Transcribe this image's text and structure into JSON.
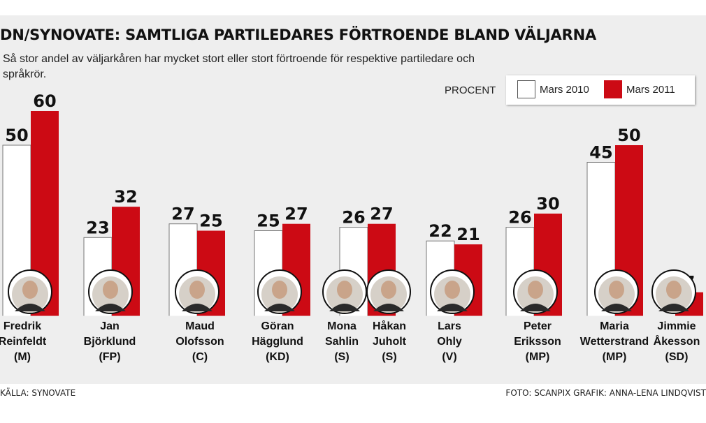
{
  "title": "DN/SYNOVATE: SAMTLIGA PARTILEDARES FÖRTROENDE BLAND VÄLJARNA",
  "subtitle": "Så stor andel av väljarkåren har mycket stort eller stort förtroende för respektive partiledare och språkrör.",
  "legend": {
    "unit_label": "PROCENT",
    "series_2010": "Mars 2010",
    "series_2011": "Mars 2011"
  },
  "colors": {
    "series_2010": "#ffffff",
    "series_2011": "#cc0a14",
    "background": "#eeeeee"
  },
  "footer": {
    "source": "KÄLLA: SYNOVATE",
    "credits": "FOTO: SCANPIX   GRAFIK: ANNA-LENA LINDQVIST"
  },
  "chart_data": {
    "type": "bar",
    "title": "DN/SYNOVATE: SAMTLIGA PARTILEDARES FÖRTROENDE BLAND VÄLJARNA",
    "ylabel": "PROCENT",
    "categories": [
      [
        "Fredrik",
        "Reinfeldt",
        "(M)"
      ],
      [
        "Jan",
        "Björklund",
        "(FP)"
      ],
      [
        "Maud",
        "Olofsson",
        "(C)"
      ],
      [
        "Göran",
        "Hägglund",
        "(KD)"
      ],
      [
        "Mona",
        "Sahlin",
        "(S)"
      ],
      [
        "Håkan",
        "Juholt",
        "(S)"
      ],
      [
        "Lars",
        "Ohly",
        "(V)"
      ],
      [
        "Peter",
        "Eriksson",
        "(MP)"
      ],
      [
        "Maria",
        "Wetterstrand",
        "(MP)"
      ],
      [
        "Jimmie",
        "Åkesson",
        "(SD)"
      ]
    ],
    "series": [
      {
        "name": "Mars 2010",
        "values": [
          50,
          23,
          27,
          25,
          26,
          null,
          22,
          26,
          45,
          null
        ]
      },
      {
        "name": "Mars 2011",
        "values": [
          60,
          32,
          25,
          27,
          null,
          27,
          21,
          30,
          50,
          7
        ]
      }
    ],
    "ylim": [
      0,
      60
    ],
    "grid": false,
    "legend_position": "top-right"
  }
}
